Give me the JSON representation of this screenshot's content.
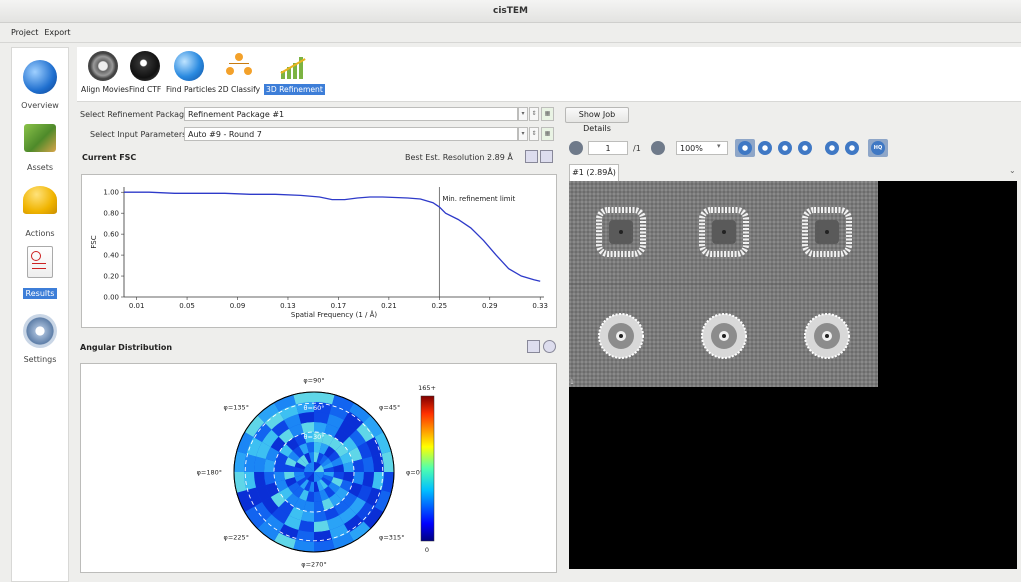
{
  "window": {
    "title": "cisTEM"
  },
  "menu": [
    "Project",
    "Export"
  ],
  "sidebar": {
    "items": [
      {
        "label": "Overview",
        "icon": "globe-icon"
      },
      {
        "label": "Assets",
        "icon": "money-icon"
      },
      {
        "label": "Actions",
        "icon": "hardhat-icon"
      },
      {
        "label": "Results",
        "icon": "checklist-icon",
        "selected": true
      },
      {
        "label": "Settings",
        "icon": "gears-icon"
      }
    ]
  },
  "toolbar": {
    "tabs": [
      {
        "label": "Align Movies",
        "icon": "film-icon"
      },
      {
        "label": "Find CTF",
        "icon": "ball-icon"
      },
      {
        "label": "Find Particles",
        "icon": "globe-search-icon"
      },
      {
        "label": "2D Classify",
        "icon": "people-hierarchy-icon"
      },
      {
        "label": "3D Refinement",
        "icon": "growth-chart-icon",
        "selected": true
      }
    ]
  },
  "controls": {
    "refinement_package_label": "Select Refinement Package :",
    "refinement_package_value": "Refinement Package #1",
    "input_params_label": "Select Input Parameters :",
    "input_params_value": "Auto #9 - Round 7",
    "show_job_details": "Show Job Details"
  },
  "fsc": {
    "header": "Current FSC",
    "resolution_label": "Best Est. Resolution :",
    "resolution_value": "2.89 Å",
    "marker_label": "Min. refinement limit"
  },
  "chart_data": {
    "type": "line",
    "title": "",
    "xlabel": "Spatial Frequency  (1 / Å)",
    "ylabel": "FSC",
    "xlim": [
      0.0,
      0.333
    ],
    "ylim": [
      0.0,
      1.05
    ],
    "xticks": [
      0.01,
      0.05,
      0.09,
      0.13,
      0.17,
      0.21,
      0.25,
      0.29,
      0.33
    ],
    "xtick_labels": [
      "0.01",
      "0.05",
      "0.09",
      "0.13",
      "0.17",
      "0.21",
      "0.25",
      "0.29",
      "0.33"
    ],
    "yticks": [
      0.0,
      0.2,
      0.4,
      0.6,
      0.8,
      1.0
    ],
    "ytick_labels": [
      "0.00",
      "0.20",
      "0.40",
      "0.60",
      "0.80",
      "1.00"
    ],
    "vline_x": 0.25,
    "series": [
      {
        "color": "#2e3ac9",
        "x": [
          0.0,
          0.02,
          0.04,
          0.06,
          0.08,
          0.1,
          0.12,
          0.14,
          0.155,
          0.165,
          0.175,
          0.185,
          0.195,
          0.205,
          0.215,
          0.225,
          0.235,
          0.245,
          0.25,
          0.255,
          0.265,
          0.275,
          0.285,
          0.295,
          0.305,
          0.315,
          0.325,
          0.33
        ],
        "y": [
          1.0,
          1.0,
          0.99,
          0.99,
          0.99,
          0.98,
          0.98,
          0.97,
          0.955,
          0.93,
          0.93,
          0.945,
          0.955,
          0.955,
          0.95,
          0.945,
          0.935,
          0.9,
          0.86,
          0.8,
          0.74,
          0.66,
          0.54,
          0.4,
          0.27,
          0.2,
          0.165,
          0.15
        ]
      }
    ]
  },
  "angular": {
    "header": "Angular Distribution",
    "phi_labels": [
      {
        "text": "φ=90°",
        "angle": 90
      },
      {
        "text": "φ=45°",
        "angle": 45
      },
      {
        "text": "φ=0°",
        "angle": 0
      },
      {
        "text": "φ=315°",
        "angle": 315
      },
      {
        "text": "φ=270°",
        "angle": 270
      },
      {
        "text": "φ=225°",
        "angle": 225
      },
      {
        "text": "φ=180°",
        "angle": 180
      },
      {
        "text": "φ=135°",
        "angle": 135
      }
    ],
    "theta_labels": [
      "θ=30°",
      "θ=60°"
    ],
    "colorbar_max": "165+",
    "colorbar_min": "0"
  },
  "viewer": {
    "page_value": "1",
    "page_total": "/1",
    "zoom": "100%",
    "tab_label": "#1 (2.89Å)",
    "hq_label": "HQ",
    "corner_label": "1"
  }
}
